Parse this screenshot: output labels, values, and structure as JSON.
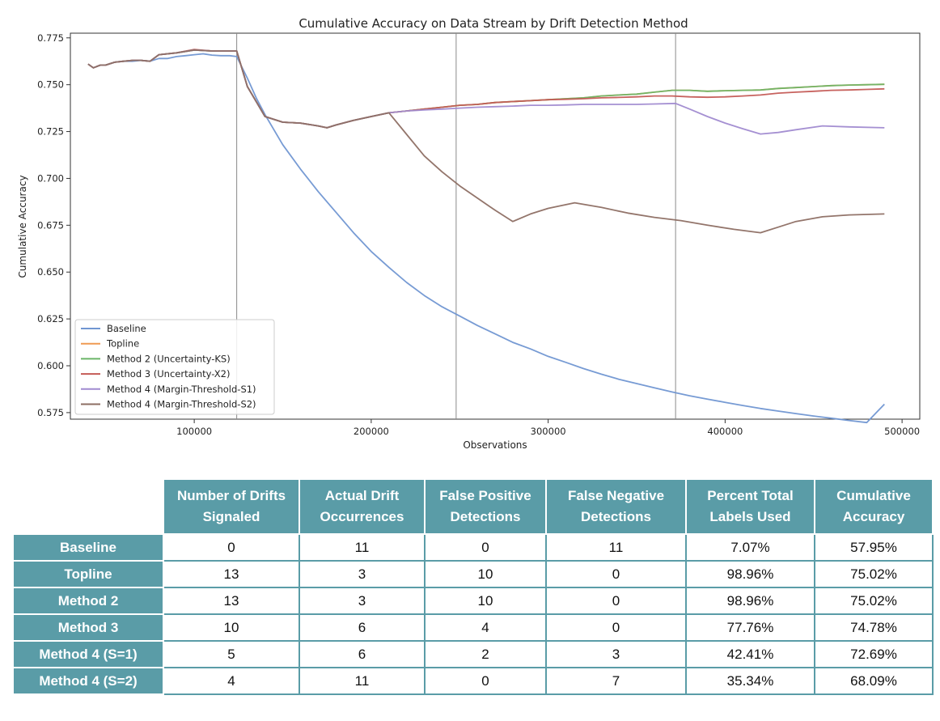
{
  "chart_data": {
    "type": "line",
    "title": "Cumulative Accuracy on Data Stream by Drift Detection Method",
    "xlabel": "Observations",
    "ylabel": "Cumulative Accuracy",
    "xlim": [
      30000,
      510000
    ],
    "ylim": [
      0.5715,
      0.7775
    ],
    "xticks": [
      100000,
      200000,
      300000,
      400000,
      500000
    ],
    "xtick_labels": [
      "100000",
      "200000",
      "300000",
      "400000",
      "500000"
    ],
    "yticks": [
      0.575,
      0.6,
      0.625,
      0.65,
      0.675,
      0.7,
      0.725,
      0.75,
      0.775
    ],
    "ytick_labels": [
      "0.575",
      "0.600",
      "0.625",
      "0.650",
      "0.675",
      "0.700",
      "0.725",
      "0.750",
      "0.775"
    ],
    "vlines": [
      124000,
      248000,
      372000
    ],
    "legend_position": "lower-left",
    "grid": false,
    "series": [
      {
        "name": "Baseline",
        "color": "#7096d2",
        "x": [
          40000,
          43000,
          47000,
          50000,
          55000,
          60000,
          65000,
          70000,
          75000,
          80000,
          85000,
          90000,
          95000,
          100000,
          105000,
          110000,
          115000,
          120000,
          124000,
          130000,
          135000,
          140000,
          150000,
          160000,
          170000,
          180000,
          190000,
          200000,
          210000,
          220000,
          230000,
          240000,
          250000,
          260000,
          270000,
          280000,
          290000,
          300000,
          310000,
          320000,
          330000,
          340000,
          350000,
          360000,
          370000,
          380000,
          390000,
          400000,
          410000,
          420000,
          430000,
          440000,
          450000,
          460000,
          470000,
          480000,
          490000
        ],
        "y": [
          0.761,
          0.759,
          0.7605,
          0.7605,
          0.762,
          0.7625,
          0.7625,
          0.763,
          0.7625,
          0.764,
          0.764,
          0.765,
          0.7655,
          0.766,
          0.7665,
          0.7658,
          0.7655,
          0.7655,
          0.765,
          0.7535,
          0.743,
          0.734,
          0.718,
          0.705,
          0.693,
          0.682,
          0.671,
          0.661,
          0.6525,
          0.6445,
          0.6375,
          0.6315,
          0.6265,
          0.6215,
          0.617,
          0.6125,
          0.609,
          0.605,
          0.6018,
          0.5985,
          0.5955,
          0.5928,
          0.5905,
          0.5882,
          0.586,
          0.584,
          0.5822,
          0.5805,
          0.5788,
          0.5772,
          0.5758,
          0.5745,
          0.5732,
          0.572,
          0.5708,
          0.5697,
          0.5795
        ]
      },
      {
        "name": "Topline",
        "color": "#ef9a52",
        "x": [
          40000,
          43000,
          47000,
          50000,
          55000,
          60000,
          65000,
          70000,
          75000,
          80000,
          90000,
          100000,
          110000,
          124000,
          130000,
          140000,
          150000,
          160000,
          170000,
          175000,
          180000,
          190000,
          200000,
          210000,
          220000,
          230000,
          240000,
          250000,
          260000,
          270000,
          280000,
          290000,
          300000,
          310000,
          320000,
          330000,
          340000,
          350000,
          360000,
          370000,
          380000,
          390000,
          400000,
          410000,
          420000,
          430000,
          440000,
          450000,
          460000,
          470000,
          480000,
          490000
        ],
        "y": [
          0.761,
          0.759,
          0.7605,
          0.7605,
          0.762,
          0.7625,
          0.763,
          0.763,
          0.7625,
          0.766,
          0.767,
          0.7685,
          0.768,
          0.768,
          0.749,
          0.733,
          0.73,
          0.7295,
          0.728,
          0.727,
          0.7285,
          0.731,
          0.733,
          0.735,
          0.736,
          0.737,
          0.738,
          0.739,
          0.7395,
          0.7405,
          0.741,
          0.7415,
          0.742,
          0.7425,
          0.743,
          0.744,
          0.7445,
          0.745,
          0.746,
          0.747,
          0.747,
          0.7465,
          0.7468,
          0.747,
          0.7472,
          0.748,
          0.7485,
          0.749,
          0.7495,
          0.7498,
          0.75,
          0.7502
        ]
      },
      {
        "name": "Method 2 (Uncertainty-KS)",
        "color": "#6bb567",
        "x": [
          40000,
          43000,
          47000,
          50000,
          55000,
          60000,
          65000,
          70000,
          75000,
          80000,
          90000,
          100000,
          110000,
          124000,
          130000,
          140000,
          150000,
          160000,
          170000,
          175000,
          180000,
          190000,
          200000,
          210000,
          220000,
          230000,
          240000,
          250000,
          260000,
          270000,
          280000,
          290000,
          300000,
          310000,
          320000,
          330000,
          340000,
          350000,
          360000,
          370000,
          380000,
          390000,
          400000,
          410000,
          420000,
          430000,
          440000,
          450000,
          460000,
          470000,
          480000,
          490000
        ],
        "y": [
          0.761,
          0.759,
          0.7605,
          0.7605,
          0.762,
          0.7625,
          0.763,
          0.763,
          0.7625,
          0.766,
          0.767,
          0.7685,
          0.768,
          0.768,
          0.749,
          0.733,
          0.73,
          0.7295,
          0.728,
          0.727,
          0.7285,
          0.731,
          0.733,
          0.735,
          0.736,
          0.737,
          0.738,
          0.739,
          0.7395,
          0.7405,
          0.741,
          0.7415,
          0.742,
          0.7425,
          0.743,
          0.744,
          0.7445,
          0.745,
          0.746,
          0.747,
          0.747,
          0.7465,
          0.7468,
          0.747,
          0.7472,
          0.748,
          0.7485,
          0.749,
          0.7495,
          0.7498,
          0.75,
          0.7502
        ]
      },
      {
        "name": "Method 3 (Uncertainty-X2)",
        "color": "#c45a55",
        "x": [
          40000,
          43000,
          47000,
          50000,
          55000,
          60000,
          65000,
          70000,
          75000,
          80000,
          90000,
          100000,
          110000,
          124000,
          130000,
          140000,
          150000,
          160000,
          170000,
          175000,
          180000,
          190000,
          200000,
          210000,
          220000,
          230000,
          240000,
          250000,
          260000,
          270000,
          280000,
          290000,
          300000,
          310000,
          320000,
          330000,
          340000,
          350000,
          360000,
          370000,
          380000,
          390000,
          400000,
          410000,
          420000,
          430000,
          440000,
          450000,
          460000,
          470000,
          480000,
          490000
        ],
        "y": [
          0.761,
          0.759,
          0.7605,
          0.7605,
          0.762,
          0.7625,
          0.763,
          0.763,
          0.7625,
          0.766,
          0.767,
          0.7688,
          0.768,
          0.768,
          0.749,
          0.733,
          0.73,
          0.7295,
          0.728,
          0.727,
          0.7285,
          0.731,
          0.733,
          0.735,
          0.736,
          0.737,
          0.738,
          0.739,
          0.7395,
          0.7405,
          0.741,
          0.7415,
          0.742,
          0.7422,
          0.7425,
          0.743,
          0.7432,
          0.7435,
          0.744,
          0.744,
          0.7435,
          0.7433,
          0.7435,
          0.744,
          0.7445,
          0.7455,
          0.746,
          0.7465,
          0.747,
          0.7472,
          0.7475,
          0.7478
        ]
      },
      {
        "name": "Method 4 (Margin-Threshold-S1)",
        "color": "#a08ad0",
        "x": [
          40000,
          43000,
          47000,
          50000,
          55000,
          60000,
          65000,
          70000,
          75000,
          80000,
          90000,
          100000,
          110000,
          124000,
          130000,
          140000,
          150000,
          160000,
          170000,
          175000,
          180000,
          190000,
          200000,
          210000,
          220000,
          230000,
          240000,
          250000,
          260000,
          270000,
          280000,
          290000,
          300000,
          310000,
          320000,
          330000,
          340000,
          350000,
          360000,
          372000,
          380000,
          390000,
          400000,
          410000,
          420000,
          430000,
          440000,
          455000,
          470000,
          490000
        ],
        "y": [
          0.761,
          0.759,
          0.7605,
          0.7605,
          0.762,
          0.7625,
          0.763,
          0.763,
          0.7625,
          0.766,
          0.767,
          0.7685,
          0.768,
          0.768,
          0.749,
          0.733,
          0.73,
          0.7295,
          0.728,
          0.727,
          0.7285,
          0.731,
          0.733,
          0.735,
          0.736,
          0.7365,
          0.737,
          0.7375,
          0.738,
          0.7383,
          0.7386,
          0.739,
          0.739,
          0.7392,
          0.7395,
          0.7395,
          0.7395,
          0.7395,
          0.7397,
          0.74,
          0.737,
          0.733,
          0.7295,
          0.7265,
          0.7237,
          0.7245,
          0.726,
          0.728,
          0.7275,
          0.727
        ]
      },
      {
        "name": "Method 4 (Margin-Threshold-S2)",
        "color": "#8d6e63",
        "x": [
          40000,
          43000,
          47000,
          50000,
          55000,
          60000,
          65000,
          70000,
          75000,
          80000,
          90000,
          100000,
          110000,
          124000,
          130000,
          140000,
          150000,
          160000,
          170000,
          175000,
          180000,
          190000,
          200000,
          210000,
          220000,
          230000,
          240000,
          250000,
          260000,
          270000,
          280000,
          290000,
          300000,
          315000,
          330000,
          345000,
          360000,
          375000,
          390000,
          405000,
          420000,
          430000,
          440000,
          455000,
          470000,
          490000
        ],
        "y": [
          0.761,
          0.759,
          0.7605,
          0.7605,
          0.762,
          0.7625,
          0.763,
          0.763,
          0.7625,
          0.766,
          0.767,
          0.7685,
          0.768,
          0.768,
          0.749,
          0.733,
          0.73,
          0.7295,
          0.728,
          0.727,
          0.7285,
          0.731,
          0.733,
          0.735,
          0.7235,
          0.712,
          0.7035,
          0.696,
          0.6895,
          0.683,
          0.677,
          0.681,
          0.684,
          0.687,
          0.6845,
          0.6815,
          0.6792,
          0.6775,
          0.675,
          0.6728,
          0.671,
          0.674,
          0.677,
          0.6795,
          0.6805,
          0.681
        ]
      }
    ]
  },
  "table": {
    "headers": [
      [
        "Number of Drifts",
        "Signaled"
      ],
      [
        "Actual Drift",
        "Occurrences"
      ],
      [
        "False Positive",
        "Detections"
      ],
      [
        "False Negative",
        "Detections"
      ],
      [
        "Percent Total",
        "Labels Used"
      ],
      [
        "Cumulative",
        "Accuracy"
      ]
    ],
    "rows": [
      {
        "label": "Baseline",
        "cells": [
          "0",
          "11",
          "0",
          "11",
          "7.07%",
          "57.95%"
        ]
      },
      {
        "label": "Topline",
        "cells": [
          "13",
          "3",
          "10",
          "0",
          "98.96%",
          "75.02%"
        ]
      },
      {
        "label": "Method 2",
        "cells": [
          "13",
          "3",
          "10",
          "0",
          "98.96%",
          "75.02%"
        ]
      },
      {
        "label": "Method 3",
        "cells": [
          "10",
          "6",
          "4",
          "0",
          "77.76%",
          "74.78%"
        ]
      },
      {
        "label": "Method 4 (S=1)",
        "cells": [
          "5",
          "6",
          "2",
          "3",
          "42.41%",
          "72.69%"
        ]
      },
      {
        "label": "Method 4 (S=2)",
        "cells": [
          "4",
          "11",
          "0",
          "7",
          "35.34%",
          "68.09%"
        ]
      }
    ],
    "header_color": "#5a9ca7"
  }
}
